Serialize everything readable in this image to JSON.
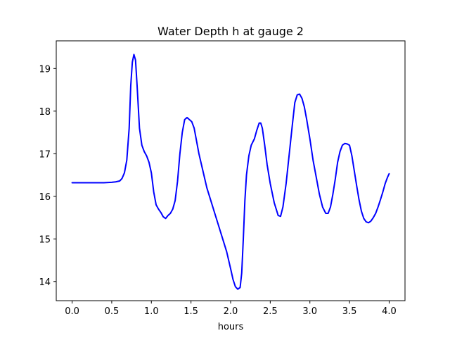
{
  "chart_data": {
    "type": "line",
    "title": "Water Depth h at gauge 2",
    "xlabel": "hours",
    "ylabel": "",
    "xlim": [
      -0.2,
      4.2
    ],
    "ylim": [
      13.55,
      19.65
    ],
    "xticks": [
      0.0,
      0.5,
      1.0,
      1.5,
      2.0,
      2.5,
      3.0,
      3.5,
      4.0
    ],
    "xtick_labels": [
      "0.0",
      "0.5",
      "1.0",
      "1.5",
      "2.0",
      "2.5",
      "3.0",
      "3.5",
      "4.0"
    ],
    "yticks": [
      14,
      15,
      16,
      17,
      18,
      19
    ],
    "ytick_labels": [
      "14",
      "15",
      "16",
      "17",
      "18",
      "19"
    ],
    "grid": false,
    "line_color": "#0000ff",
    "series": [
      {
        "x": [
          0.0,
          0.1,
          0.2,
          0.3,
          0.4,
          0.5,
          0.55,
          0.6,
          0.63,
          0.66,
          0.69,
          0.72,
          0.74,
          0.76,
          0.78,
          0.8,
          0.82,
          0.85,
          0.88,
          0.91,
          0.94,
          0.97,
          1.0,
          1.03,
          1.06,
          1.09,
          1.12,
          1.15,
          1.18,
          1.21,
          1.24,
          1.27,
          1.3,
          1.33,
          1.36,
          1.39,
          1.42,
          1.45,
          1.48,
          1.51,
          1.54,
          1.57,
          1.6,
          1.65,
          1.7,
          1.75,
          1.8,
          1.85,
          1.9,
          1.95,
          2.0,
          2.03,
          2.06,
          2.09,
          2.12,
          2.14,
          2.16,
          2.18,
          2.2,
          2.23,
          2.26,
          2.3,
          2.33,
          2.36,
          2.38,
          2.4,
          2.43,
          2.46,
          2.5,
          2.55,
          2.6,
          2.63,
          2.66,
          2.7,
          2.74,
          2.78,
          2.81,
          2.84,
          2.87,
          2.9,
          2.93,
          2.96,
          3.0,
          3.04,
          3.08,
          3.12,
          3.16,
          3.2,
          3.23,
          3.26,
          3.29,
          3.32,
          3.35,
          3.38,
          3.41,
          3.44,
          3.47,
          3.5,
          3.53,
          3.56,
          3.59,
          3.62,
          3.65,
          3.68,
          3.71,
          3.74,
          3.77,
          3.8,
          3.83,
          3.86,
          3.89,
          3.92,
          3.95,
          3.98,
          4.0
        ],
        "y": [
          16.32,
          16.32,
          16.32,
          16.32,
          16.32,
          16.33,
          16.34,
          16.36,
          16.42,
          16.55,
          16.85,
          17.6,
          18.6,
          19.15,
          19.33,
          19.2,
          18.6,
          17.6,
          17.2,
          17.05,
          16.95,
          16.8,
          16.55,
          16.1,
          15.8,
          15.7,
          15.62,
          15.52,
          15.48,
          15.55,
          15.6,
          15.7,
          15.9,
          16.35,
          17.0,
          17.5,
          17.8,
          17.85,
          17.8,
          17.75,
          17.6,
          17.3,
          17.0,
          16.6,
          16.2,
          15.9,
          15.6,
          15.3,
          15.0,
          14.7,
          14.3,
          14.05,
          13.88,
          13.82,
          13.86,
          14.2,
          15.0,
          15.9,
          16.5,
          16.95,
          17.2,
          17.35,
          17.55,
          17.72,
          17.72,
          17.6,
          17.2,
          16.75,
          16.3,
          15.85,
          15.55,
          15.53,
          15.75,
          16.3,
          17.0,
          17.7,
          18.2,
          18.38,
          18.4,
          18.3,
          18.1,
          17.8,
          17.35,
          16.85,
          16.45,
          16.05,
          15.75,
          15.6,
          15.6,
          15.75,
          16.05,
          16.4,
          16.8,
          17.05,
          17.2,
          17.24,
          17.23,
          17.2,
          16.95,
          16.6,
          16.25,
          15.92,
          15.65,
          15.48,
          15.4,
          15.38,
          15.42,
          15.5,
          15.6,
          15.75,
          15.92,
          16.1,
          16.3,
          16.45,
          16.53
        ]
      }
    ]
  }
}
